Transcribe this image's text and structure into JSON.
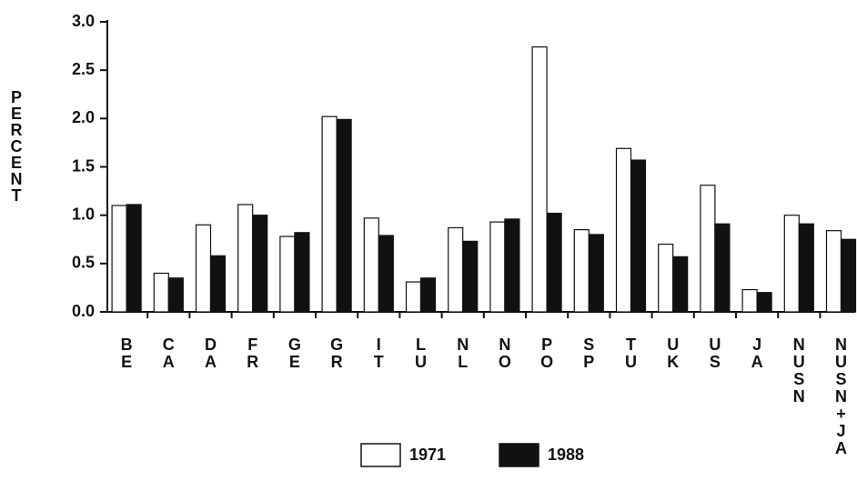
{
  "chart_data": {
    "type": "bar",
    "y_label": "PERCENT",
    "categories": [
      "BE",
      "CA",
      "DA",
      "FR",
      "GE",
      "GR",
      "IT",
      "LU",
      "NL",
      "NO",
      "PO",
      "SP",
      "TU",
      "UK",
      "US",
      "JA",
      "NUSN",
      "NUSN+JA"
    ],
    "series": [
      {
        "name": "1971",
        "color": "#ffffff",
        "values": [
          1.1,
          0.4,
          0.9,
          1.11,
          0.78,
          2.02,
          0.97,
          0.31,
          0.87,
          0.93,
          2.74,
          0.85,
          1.69,
          0.7,
          1.31,
          0.23,
          1.0,
          0.84
        ]
      },
      {
        "name": "1988",
        "color": "#111111",
        "values": [
          1.11,
          0.35,
          0.58,
          1.0,
          0.82,
          1.99,
          0.79,
          0.35,
          0.73,
          0.96,
          1.02,
          0.8,
          1.57,
          0.57,
          0.91,
          0.2,
          0.91,
          0.75
        ]
      }
    ],
    "ylim": [
      0,
      3
    ],
    "yticks": [
      {
        "value": 0,
        "label": "0.0"
      },
      0.5,
      {
        "value": 1,
        "label": "1.0"
      },
      1.5,
      {
        "value": 2,
        "label": "2.0"
      },
      2.5,
      {
        "value": 3,
        "label": "3.0"
      }
    ],
    "grid": false,
    "legend": "bottom"
  }
}
